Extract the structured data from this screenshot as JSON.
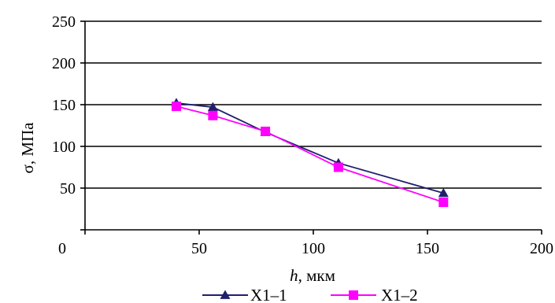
{
  "chart_data": {
    "type": "line",
    "xlabel": "h, мкм",
    "xlabel_italic": "h",
    "xlabel_unit": ", мкм",
    "ylabel": "σ, МПа",
    "xlim": [
      0,
      200
    ],
    "ylim": [
      0,
      250
    ],
    "x_ticks": [
      0,
      50,
      100,
      150,
      200
    ],
    "x_tick_labels": [
      "0",
      "50",
      "100",
      "150",
      "200"
    ],
    "y_ticks": [
      50,
      100,
      150,
      200,
      250
    ],
    "y_tick_labels": [
      "50",
      "100",
      "150",
      "200",
      "250"
    ],
    "grid": "horizontal",
    "legend": "bottom",
    "series": [
      {
        "name": "X1–1",
        "color": "#1f1f6e",
        "marker": "triangle",
        "x": [
          40,
          56,
          79,
          111,
          157
        ],
        "y": [
          152,
          147,
          117,
          80,
          44
        ]
      },
      {
        "name": "X1–2",
        "color": "#ff00ff",
        "marker": "square",
        "x": [
          40,
          56,
          79,
          111,
          157
        ],
        "y": [
          148,
          137,
          118,
          75,
          33
        ]
      }
    ]
  }
}
